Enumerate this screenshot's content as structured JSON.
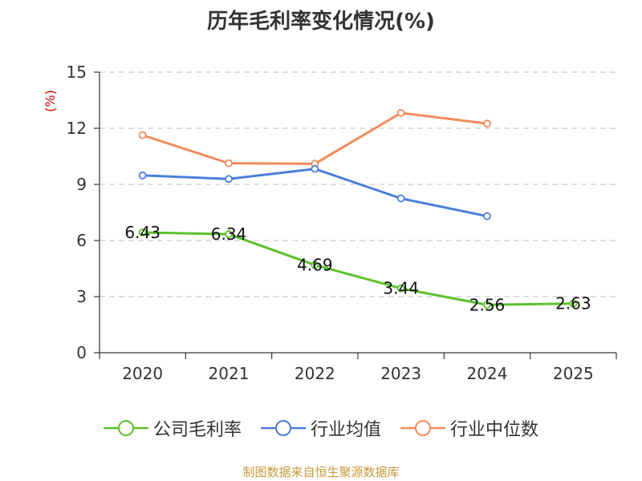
{
  "chart_data": {
    "type": "line",
    "title": "历年毛利率变化情况(%)",
    "ylabel": "(%)",
    "categories": [
      "2020",
      "2021",
      "2022",
      "2023",
      "2024",
      "2025"
    ],
    "ylim": [
      0,
      15
    ],
    "yticks": [
      0,
      3,
      6,
      9,
      12,
      15
    ],
    "grid": true,
    "legend_position": "bottom",
    "series": [
      {
        "name": "公司毛利率",
        "color": "#5cc12b",
        "values": [
          6.43,
          6.34,
          4.69,
          3.44,
          2.56,
          2.63
        ],
        "labels": [
          "6.43",
          "6.34",
          "4.69",
          "3.44",
          "2.56",
          "2.63"
        ]
      },
      {
        "name": "行业均值",
        "color": "#4a7fdc",
        "values": [
          9.48,
          9.29,
          9.83,
          8.25,
          7.3,
          null
        ]
      },
      {
        "name": "行业中位数",
        "color": "#f28b5b",
        "values": [
          11.63,
          10.13,
          10.1,
          12.82,
          12.25,
          null
        ]
      }
    ]
  },
  "source_note": "制图数据来自恒生聚源数据库"
}
